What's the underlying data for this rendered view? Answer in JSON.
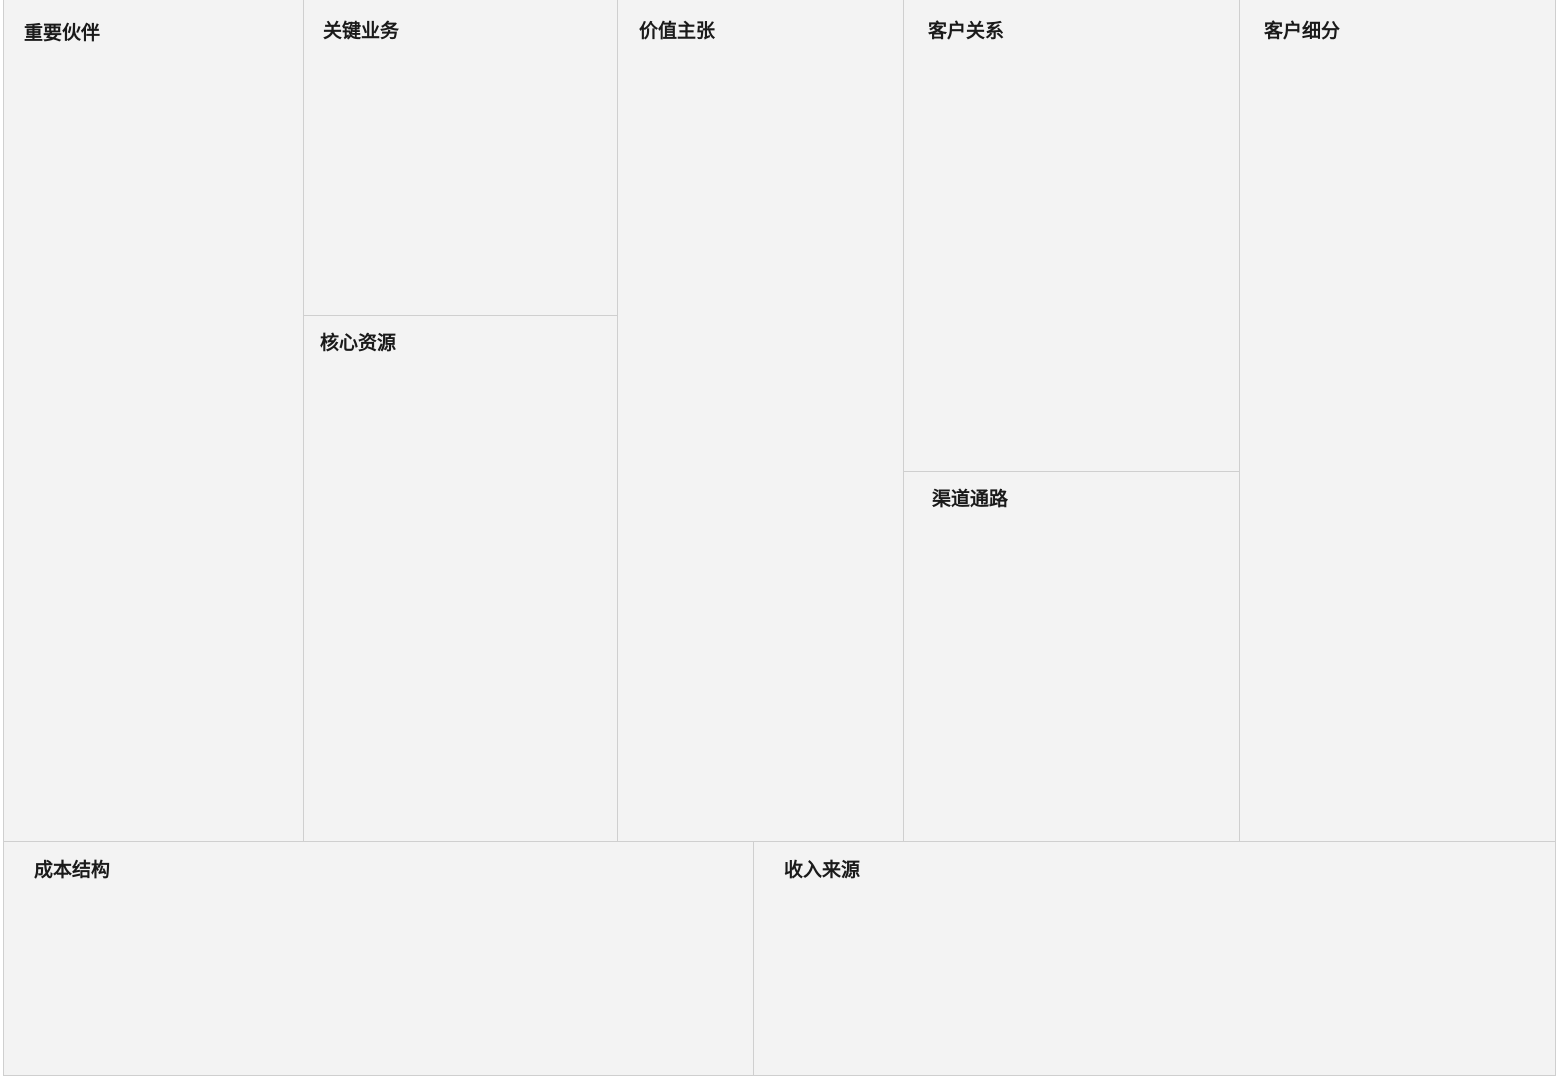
{
  "canvas": {
    "blocks": {
      "key_partners": {
        "label": "重要伙伴"
      },
      "key_activities": {
        "label": "关键业务"
      },
      "key_resources": {
        "label": "核心资源"
      },
      "value_propositions": {
        "label": "价值主张"
      },
      "customer_relationships": {
        "label": "客户关系"
      },
      "channels": {
        "label": "渠道通路"
      },
      "customer_segments": {
        "label": "客户细分"
      },
      "cost_structure": {
        "label": "成本结构"
      },
      "revenue_streams": {
        "label": "收入来源"
      }
    }
  },
  "colors": {
    "block_background": "#f3f3f3",
    "block_border": "#cfcfcf",
    "label_text": "#1a1a1a"
  }
}
